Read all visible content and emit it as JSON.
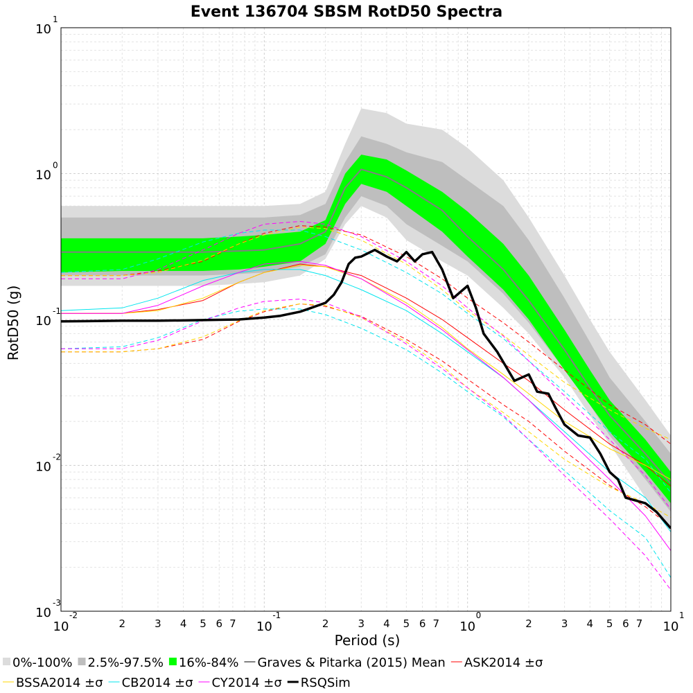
{
  "chart_data": {
    "type": "line",
    "title": "Event 136704 SBSM RotD50 Spectra",
    "xlabel": "Period (s)",
    "ylabel": "RotD50 (g)",
    "x_scale": "log",
    "y_scale": "log",
    "xlim": [
      0.01,
      10
    ],
    "ylim": [
      0.001,
      10
    ],
    "grid": true,
    "legend_position": "bottom",
    "x_major_ticks": [
      {
        "value": 0.01,
        "base": "10",
        "exp": "-2"
      },
      {
        "value": 0.1,
        "base": "10",
        "exp": "-1"
      },
      {
        "value": 1,
        "base": "10",
        "exp": "0"
      },
      {
        "value": 10,
        "base": "10",
        "exp": "1"
      }
    ],
    "x_minor_tick_labels": [
      "2",
      "3",
      "4",
      "5",
      "6",
      "7"
    ],
    "y_major_ticks": [
      {
        "value": 0.001,
        "base": "10",
        "exp": "-3"
      },
      {
        "value": 0.01,
        "base": "10",
        "exp": "-2"
      },
      {
        "value": 0.1,
        "base": "10",
        "exp": "-1"
      },
      {
        "value": 1,
        "base": "10",
        "exp": "0"
      },
      {
        "value": 10,
        "base": "10",
        "exp": "1"
      }
    ],
    "bands": [
      {
        "name": "0%-100%",
        "color": "#dcdcdc",
        "x": [
          0.01,
          0.02,
          0.03,
          0.05,
          0.075,
          0.1,
          0.15,
          0.2,
          0.25,
          0.3,
          0.4,
          0.5,
          0.75,
          1,
          1.5,
          2,
          3,
          4,
          5,
          7.5,
          10
        ],
        "lower": [
          0.17,
          0.17,
          0.17,
          0.17,
          0.175,
          0.18,
          0.2,
          0.26,
          0.45,
          0.6,
          0.5,
          0.35,
          0.25,
          0.2,
          0.12,
          0.08,
          0.04,
          0.022,
          0.014,
          0.006,
          0.0038
        ],
        "upper": [
          0.6,
          0.6,
          0.6,
          0.6,
          0.6,
          0.6,
          0.62,
          0.75,
          1.6,
          2.8,
          2.6,
          2.2,
          2.0,
          1.5,
          0.9,
          0.5,
          0.2,
          0.1,
          0.06,
          0.028,
          0.016
        ]
      },
      {
        "name": "2.5%-97.5%",
        "color": "#bebebe",
        "x": [
          0.01,
          0.02,
          0.03,
          0.05,
          0.075,
          0.1,
          0.15,
          0.2,
          0.25,
          0.3,
          0.4,
          0.5,
          0.75,
          1,
          1.5,
          2,
          3,
          4,
          5,
          7.5,
          10
        ],
        "lower": [
          0.2,
          0.2,
          0.2,
          0.2,
          0.205,
          0.21,
          0.23,
          0.28,
          0.5,
          0.7,
          0.6,
          0.45,
          0.32,
          0.25,
          0.15,
          0.095,
          0.045,
          0.026,
          0.016,
          0.008,
          0.0048
        ],
        "upper": [
          0.5,
          0.5,
          0.5,
          0.5,
          0.5,
          0.5,
          0.52,
          0.62,
          1.2,
          1.8,
          1.6,
          1.4,
          1.2,
          0.9,
          0.6,
          0.35,
          0.14,
          0.07,
          0.04,
          0.02,
          0.012
        ]
      },
      {
        "name": "16%-84%",
        "color": "#00ff00",
        "x": [
          0.01,
          0.02,
          0.03,
          0.05,
          0.075,
          0.1,
          0.15,
          0.2,
          0.25,
          0.3,
          0.4,
          0.5,
          0.75,
          1,
          1.5,
          2,
          3,
          4,
          5,
          7.5,
          10
        ],
        "lower": [
          0.21,
          0.215,
          0.215,
          0.215,
          0.22,
          0.23,
          0.25,
          0.33,
          0.62,
          0.85,
          0.75,
          0.6,
          0.4,
          0.27,
          0.16,
          0.1,
          0.045,
          0.026,
          0.017,
          0.009,
          0.0055
        ],
        "upper": [
          0.36,
          0.36,
          0.36,
          0.36,
          0.37,
          0.38,
          0.4,
          0.48,
          1.0,
          1.35,
          1.25,
          1.05,
          0.75,
          0.55,
          0.33,
          0.2,
          0.085,
          0.045,
          0.028,
          0.015,
          0.009
        ]
      }
    ],
    "series": [
      {
        "name": "Graves & Pitarka (2015) Mean",
        "color": "#808080",
        "width": 2,
        "dash": "none",
        "x": [
          0.01,
          0.02,
          0.03,
          0.05,
          0.075,
          0.1,
          0.15,
          0.2,
          0.25,
          0.3,
          0.4,
          0.5,
          0.75,
          1,
          1.5,
          2,
          3,
          4,
          5,
          7.5,
          10
        ],
        "y": [
          0.29,
          0.29,
          0.29,
          0.29,
          0.295,
          0.3,
          0.33,
          0.4,
          0.8,
          1.07,
          0.95,
          0.8,
          0.56,
          0.37,
          0.22,
          0.135,
          0.062,
          0.034,
          0.022,
          0.012,
          0.0075
        ]
      },
      {
        "name": "ASK2014 ±σ",
        "color": "#ff0000",
        "width": 1,
        "dash": "none",
        "x": [
          0.01,
          0.02,
          0.03,
          0.05,
          0.075,
          0.1,
          0.15,
          0.2,
          0.3,
          0.5,
          0.75,
          1,
          1.5,
          2,
          3,
          5,
          7.5,
          10
        ],
        "y": [
          0.11,
          0.11,
          0.117,
          0.135,
          0.18,
          0.21,
          0.24,
          0.23,
          0.2,
          0.14,
          0.1,
          0.075,
          0.05,
          0.038,
          0.024,
          0.014,
          0.01,
          0.0072
        ]
      },
      {
        "name": "ASK2014 +σ",
        "color": "#ff0000",
        "width": 1,
        "dash": "6,4",
        "x": [
          0.01,
          0.02,
          0.03,
          0.05,
          0.075,
          0.1,
          0.15,
          0.2,
          0.3,
          0.5,
          0.75,
          1,
          1.5,
          2,
          3,
          5,
          7.5,
          10
        ],
        "y": [
          0.2,
          0.2,
          0.215,
          0.25,
          0.33,
          0.39,
          0.44,
          0.43,
          0.38,
          0.27,
          0.19,
          0.14,
          0.095,
          0.07,
          0.045,
          0.026,
          0.019,
          0.014
        ]
      },
      {
        "name": "ASK2014 -σ",
        "color": "#ff0000",
        "width": 1,
        "dash": "6,4",
        "x": [
          0.01,
          0.02,
          0.03,
          0.05,
          0.075,
          0.1,
          0.15,
          0.2,
          0.3,
          0.5,
          0.75,
          1,
          1.5,
          2,
          3,
          5,
          7.5,
          10
        ],
        "y": [
          0.06,
          0.06,
          0.063,
          0.073,
          0.097,
          0.113,
          0.128,
          0.123,
          0.105,
          0.073,
          0.052,
          0.039,
          0.026,
          0.02,
          0.0125,
          0.0073,
          0.0052,
          0.0038
        ]
      },
      {
        "name": "BSSA2014 ±σ",
        "color": "#ffd700",
        "width": 1,
        "dash": "none",
        "x": [
          0.01,
          0.02,
          0.03,
          0.05,
          0.075,
          0.1,
          0.15,
          0.2,
          0.3,
          0.5,
          0.75,
          1,
          1.5,
          2,
          3,
          5,
          7.5,
          10
        ],
        "y": [
          0.11,
          0.11,
          0.115,
          0.14,
          0.18,
          0.21,
          0.235,
          0.23,
          0.19,
          0.13,
          0.088,
          0.063,
          0.042,
          0.031,
          0.02,
          0.013,
          0.01,
          0.008
        ]
      },
      {
        "name": "BSSA2014 +σ",
        "color": "#ffd700",
        "width": 1,
        "dash": "6,4",
        "x": [
          0.01,
          0.02,
          0.03,
          0.05,
          0.075,
          0.1,
          0.15,
          0.2,
          0.3,
          0.5,
          0.75,
          1,
          1.5,
          2,
          3,
          5,
          7.5,
          10
        ],
        "y": [
          0.2,
          0.2,
          0.21,
          0.255,
          0.33,
          0.38,
          0.43,
          0.42,
          0.35,
          0.24,
          0.16,
          0.115,
          0.078,
          0.057,
          0.037,
          0.024,
          0.018,
          0.015
        ]
      },
      {
        "name": "BSSA2014 -σ",
        "color": "#ffd700",
        "width": 1,
        "dash": "6,4",
        "x": [
          0.01,
          0.02,
          0.03,
          0.05,
          0.075,
          0.1,
          0.15,
          0.2,
          0.3,
          0.5,
          0.75,
          1,
          1.5,
          2,
          3,
          5,
          7.5,
          10
        ],
        "y": [
          0.06,
          0.06,
          0.063,
          0.076,
          0.098,
          0.115,
          0.128,
          0.125,
          0.103,
          0.07,
          0.048,
          0.034,
          0.023,
          0.017,
          0.011,
          0.0071,
          0.0055,
          0.0044
        ]
      },
      {
        "name": "CB2014 ±σ",
        "color": "#00e5ee",
        "width": 1,
        "dash": "none",
        "x": [
          0.01,
          0.02,
          0.03,
          0.05,
          0.075,
          0.1,
          0.15,
          0.2,
          0.3,
          0.5,
          0.75,
          1,
          1.5,
          2,
          3,
          5,
          7.5,
          10
        ],
        "y": [
          0.115,
          0.12,
          0.14,
          0.185,
          0.21,
          0.22,
          0.22,
          0.2,
          0.16,
          0.115,
          0.08,
          0.06,
          0.04,
          0.028,
          0.017,
          0.009,
          0.006,
          0.0035
        ]
      },
      {
        "name": "CB2014 +σ",
        "color": "#00e5ee",
        "width": 1,
        "dash": "6,4",
        "x": [
          0.01,
          0.02,
          0.03,
          0.05,
          0.075,
          0.1,
          0.15,
          0.2,
          0.3,
          0.5,
          0.75,
          1,
          1.5,
          2,
          3,
          5,
          7.5,
          10
        ],
        "y": [
          0.21,
          0.22,
          0.26,
          0.34,
          0.39,
          0.41,
          0.41,
          0.37,
          0.3,
          0.21,
          0.15,
          0.11,
          0.074,
          0.052,
          0.032,
          0.017,
          0.011,
          0.0065
        ]
      },
      {
        "name": "CB2014 -σ",
        "color": "#00e5ee",
        "width": 1,
        "dash": "6,4",
        "x": [
          0.01,
          0.02,
          0.03,
          0.05,
          0.075,
          0.1,
          0.15,
          0.2,
          0.3,
          0.5,
          0.75,
          1,
          1.5,
          2,
          3,
          5,
          7.5,
          10
        ],
        "y": [
          0.063,
          0.065,
          0.075,
          0.1,
          0.114,
          0.118,
          0.118,
          0.108,
          0.087,
          0.062,
          0.043,
          0.032,
          0.0215,
          0.015,
          0.0092,
          0.0049,
          0.0032,
          0.0017
        ]
      },
      {
        "name": "CY2014 ±σ",
        "color": "#ff00ff",
        "width": 1,
        "dash": "none",
        "x": [
          0.01,
          0.02,
          0.03,
          0.05,
          0.075,
          0.1,
          0.15,
          0.2,
          0.3,
          0.5,
          0.75,
          1,
          1.5,
          2,
          3,
          5,
          7.5,
          10
        ],
        "y": [
          0.11,
          0.11,
          0.125,
          0.17,
          0.21,
          0.24,
          0.25,
          0.235,
          0.19,
          0.125,
          0.085,
          0.062,
          0.04,
          0.028,
          0.016,
          0.008,
          0.0045,
          0.0026
        ]
      },
      {
        "name": "CY2014 +σ",
        "color": "#ff00ff",
        "width": 1,
        "dash": "6,4",
        "x": [
          0.01,
          0.02,
          0.03,
          0.05,
          0.075,
          0.1,
          0.15,
          0.2,
          0.3,
          0.5,
          0.75,
          1,
          1.5,
          2,
          3,
          5,
          7.5,
          10
        ],
        "y": [
          0.19,
          0.19,
          0.22,
          0.3,
          0.39,
          0.45,
          0.47,
          0.45,
          0.37,
          0.25,
          0.17,
          0.12,
          0.077,
          0.052,
          0.03,
          0.015,
          0.0085,
          0.005
        ]
      },
      {
        "name": "CY2014 -σ",
        "color": "#ff00ff",
        "width": 1,
        "dash": "6,4",
        "x": [
          0.01,
          0.02,
          0.03,
          0.05,
          0.075,
          0.1,
          0.15,
          0.2,
          0.3,
          0.5,
          0.75,
          1,
          1.5,
          2,
          3,
          5,
          7.5,
          10
        ],
        "y": [
          0.063,
          0.063,
          0.072,
          0.098,
          0.12,
          0.133,
          0.138,
          0.13,
          0.104,
          0.068,
          0.046,
          0.034,
          0.022,
          0.015,
          0.0085,
          0.0043,
          0.0024,
          0.0014
        ]
      },
      {
        "name": "RSQSim",
        "color": "#000000",
        "width": 3.5,
        "dash": "none",
        "x": [
          0.01,
          0.02,
          0.03,
          0.05,
          0.075,
          0.1,
          0.12,
          0.15,
          0.17,
          0.2,
          0.22,
          0.24,
          0.26,
          0.28,
          0.3,
          0.35,
          0.4,
          0.45,
          0.5,
          0.55,
          0.6,
          0.67,
          0.75,
          0.85,
          1.0,
          1.1,
          1.2,
          1.4,
          1.7,
          2.0,
          2.2,
          2.5,
          2.7,
          3.0,
          3.5,
          4.0,
          4.5,
          5.0,
          5.5,
          6.0,
          7.5,
          8.5,
          10
        ],
        "y": [
          0.097,
          0.098,
          0.098,
          0.099,
          0.1,
          0.103,
          0.106,
          0.113,
          0.12,
          0.13,
          0.148,
          0.18,
          0.24,
          0.265,
          0.27,
          0.3,
          0.27,
          0.25,
          0.29,
          0.25,
          0.28,
          0.29,
          0.22,
          0.14,
          0.17,
          0.12,
          0.08,
          0.06,
          0.038,
          0.042,
          0.032,
          0.031,
          0.025,
          0.019,
          0.016,
          0.0155,
          0.012,
          0.009,
          0.008,
          0.006,
          0.0055,
          0.0048,
          0.0037
        ]
      }
    ],
    "legend": [
      {
        "label": "0%-100%",
        "type": "box",
        "color": "#dcdcdc"
      },
      {
        "label": "2.5%-97.5%",
        "type": "box",
        "color": "#bebebe"
      },
      {
        "label": "16%-84%",
        "type": "box",
        "color": "#00ff00"
      },
      {
        "label": "Graves & Pitarka (2015) Mean",
        "type": "line",
        "color": "#808080",
        "width": 2
      },
      {
        "label": "ASK2014 ±σ",
        "type": "line",
        "color": "#ff0000",
        "width": 1
      },
      {
        "label": "BSSA2014 ±σ",
        "type": "line",
        "color": "#ffd700",
        "width": 1
      },
      {
        "label": "CB2014 ±σ",
        "type": "line",
        "color": "#00e5ee",
        "width": 1
      },
      {
        "label": "CY2014 ±σ",
        "type": "line",
        "color": "#ff00ff",
        "width": 1
      },
      {
        "label": "RSQSim",
        "type": "line",
        "color": "#000000",
        "width": 3
      }
    ]
  }
}
